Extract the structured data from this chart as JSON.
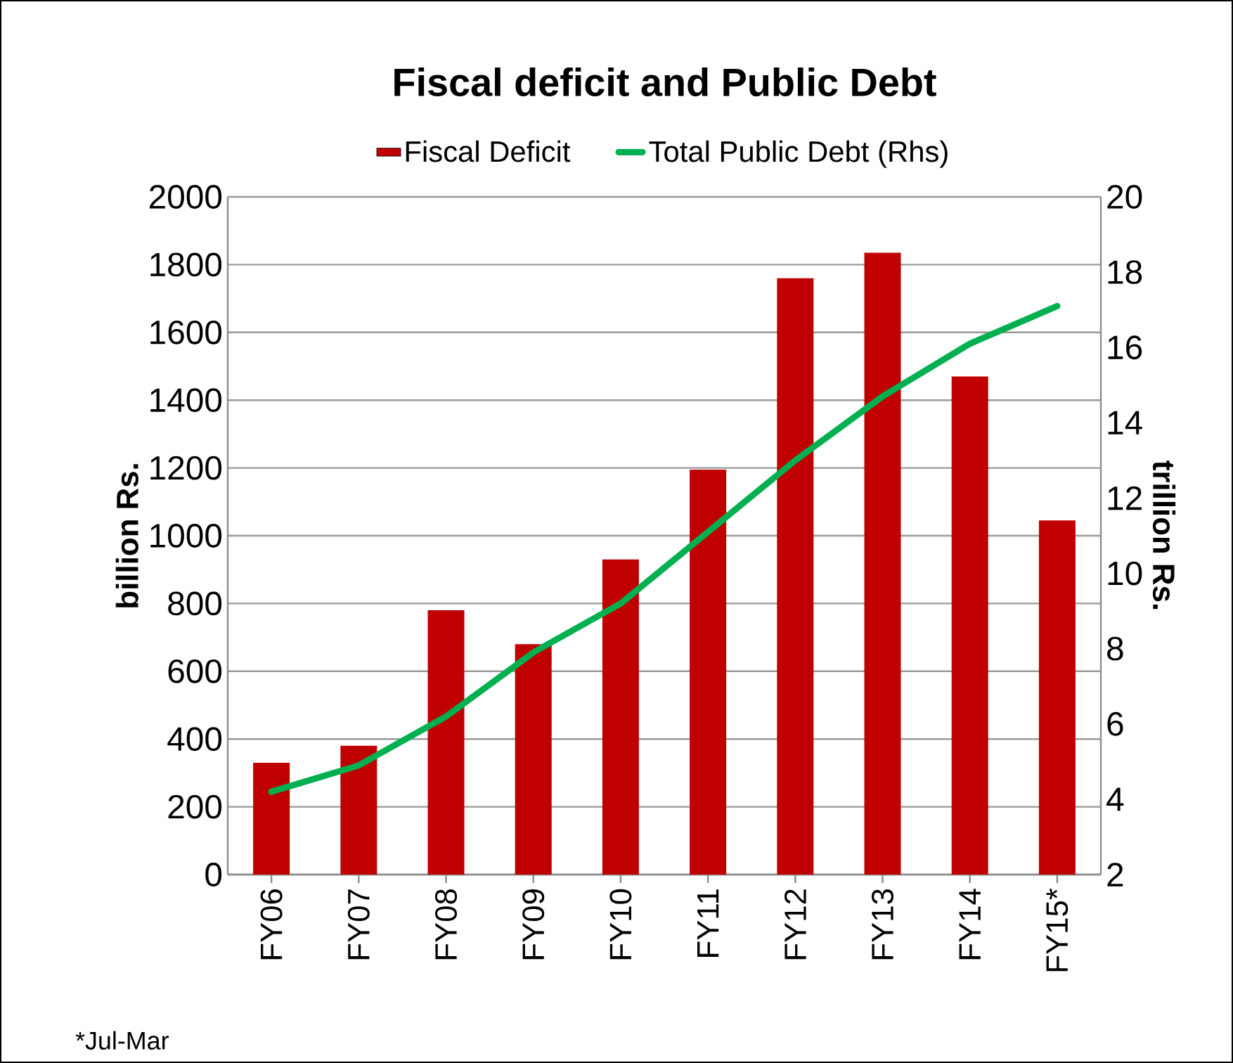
{
  "chart_data": {
    "type": "bar",
    "title": "Fiscal deficit and Public Debt",
    "categories": [
      "FY06",
      "FY07",
      "FY08",
      "FY09",
      "FY10",
      "FY11",
      "FY12",
      "FY13",
      "FY14",
      "FY15*"
    ],
    "series": [
      {
        "name": "Fiscal Deficit",
        "color": "#c00000",
        "values": [
          330,
          380,
          780,
          680,
          930,
          1195,
          1760,
          1835,
          1470,
          1045
        ]
      },
      {
        "name": "Total Public Debt (Rhs)",
        "type": "line",
        "axis": "y2",
        "color": "#00b050",
        "values": [
          4.2,
          4.9,
          6.2,
          7.9,
          9.2,
          11.1,
          13.0,
          14.7,
          16.1,
          17.1
        ]
      }
    ],
    "ylabel": "billion Rs.",
    "y2label": "trillion Rs.",
    "ylim": [
      0,
      2000
    ],
    "yticks": [
      0,
      200,
      400,
      600,
      800,
      1000,
      1200,
      1400,
      1600,
      1800,
      2000
    ],
    "y2lim": [
      2,
      20
    ],
    "y2ticks": [
      2,
      4,
      6,
      8,
      10,
      12,
      14,
      16,
      18,
      20
    ],
    "grid": "y",
    "legend": "top",
    "annotations": [
      "*Jul-Mar"
    ]
  }
}
